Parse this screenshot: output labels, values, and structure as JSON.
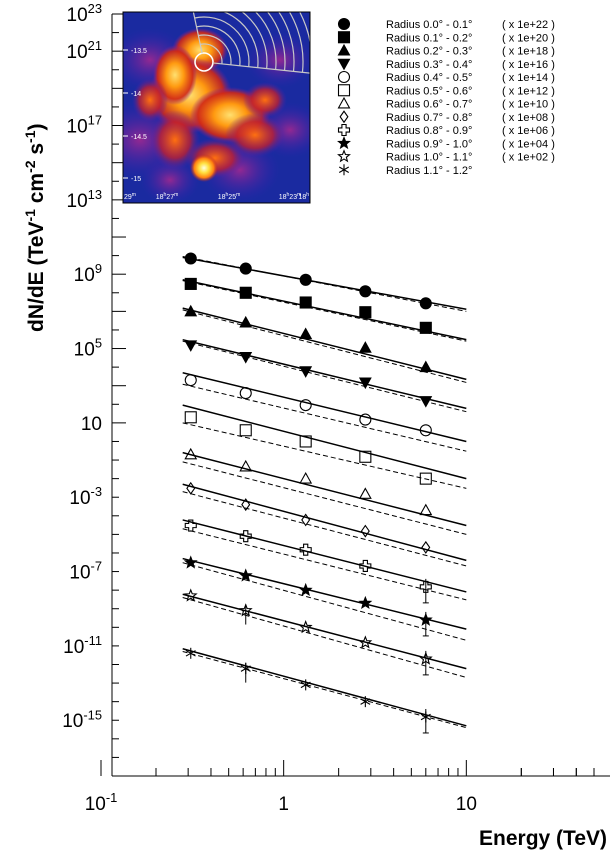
{
  "chart_data": {
    "type": "scatter",
    "xlabel": "Energy (TeV)",
    "ylabel": "dN/dE (TeV^-1 cm^-2 s^-1)",
    "xscale": "log",
    "yscale": "log",
    "xlim": [
      0.1,
      50
    ],
    "ylim": [
      1e-18,
      1e+23
    ],
    "x_ticks": [
      {
        "value": 0.1,
        "base": "10",
        "exp": "-1"
      },
      {
        "value": 1,
        "base": "1",
        "exp": ""
      },
      {
        "value": 10,
        "base": "10",
        "exp": ""
      }
    ],
    "y_ticks": [
      {
        "value": 1e+23,
        "base": "10",
        "exp": "23"
      },
      {
        "value": 1e+21,
        "base": "10",
        "exp": "21"
      },
      {
        "value": 1e+17,
        "base": "10",
        "exp": "17"
      },
      {
        "value": 10000000000000.0,
        "base": "10",
        "exp": "13"
      },
      {
        "value": 1000000000.0,
        "base": "10",
        "exp": "9"
      },
      {
        "value": 100000.0,
        "base": "10",
        "exp": "5"
      },
      {
        "value": 10,
        "base": "10",
        "exp": ""
      },
      {
        "value": 0.001,
        "base": "10",
        "exp": "-3"
      },
      {
        "value": 1e-07,
        "base": "10",
        "exp": "-7"
      },
      {
        "value": 1e-11,
        "base": "10",
        "exp": "-11"
      },
      {
        "value": 1e-15,
        "base": "10",
        "exp": "-15"
      }
    ],
    "grid": false,
    "legend_position": "top-right",
    "series": [
      {
        "name": "Radius 0.0° - 0.1°",
        "scale": "( x 1e+22 )",
        "marker": "filled-circle",
        "x": [
          0.31,
          0.62,
          1.32,
          2.8,
          6.0
        ],
        "y": [
          7000000000.0,
          2000000000.0,
          500000000.0,
          120000000.0,
          27000000.0
        ],
        "fit": [
          0.28,
          10,
          8000000000.0,
          13000000.0
        ],
        "ref": [
          0.28,
          10,
          9000000000.0,
          10000000.0
        ]
      },
      {
        "name": "Radius 0.1° - 0.2°",
        "scale": "( x 1e+20 )",
        "marker": "filled-square",
        "x": [
          0.31,
          0.62,
          1.32,
          2.8,
          6.0
        ],
        "y": [
          300000000.0,
          100000000.0,
          30000000.0,
          9000000.0,
          1300000.0
        ],
        "fit": [
          0.28,
          10,
          500000000.0,
          300000.0
        ],
        "ref": [
          0.28,
          10,
          450000000.0,
          250000.0
        ]
      },
      {
        "name": "Radius 0.2° - 0.3°",
        "scale": "( x 1e+18 )",
        "marker": "filled-triangle-up",
        "x": [
          0.31,
          0.62,
          1.32,
          2.8,
          6.0
        ],
        "y": [
          10000000.0,
          2500000.0,
          600000.0,
          110000.0,
          10000.0
        ],
        "fit": [
          0.28,
          10,
          15000000.0,
          2200.0
        ],
        "ref": [
          0.28,
          10,
          12000000.0,
          1500.0
        ]
      },
      {
        "name": "Radius 0.3° - 0.4°",
        "scale": "( x 1e+16 )",
        "marker": "filled-triangle-down",
        "x": [
          0.31,
          0.62,
          1.32,
          2.8,
          6.0
        ],
        "y": [
          150000.0,
          35000.0,
          6000.0,
          1500.0,
          150.0
        ],
        "fit": [
          0.28,
          10,
          300000.0,
          60
        ],
        "ref": [
          0.28,
          10,
          250000.0,
          40
        ]
      },
      {
        "name": "Radius 0.4° - 0.5°",
        "scale": "( x 1e+14 )",
        "marker": "open-circle",
        "x": [
          0.31,
          0.62,
          1.32,
          2.8,
          6.0
        ],
        "y": [
          2000.0,
          400,
          90,
          15,
          4
        ],
        "fit": [
          0.28,
          10,
          5000.0,
          1
        ],
        "ref": [
          0.28,
          10,
          1200.0,
          0.3
        ]
      },
      {
        "name": "Radius 0.5° - 0.6°",
        "scale": "( x 1e+12 )",
        "marker": "open-square",
        "x": [
          0.31,
          0.62,
          1.32,
          2.8,
          6.0
        ],
        "y": [
          20,
          4,
          1,
          0.15,
          0.01
        ],
        "fit": [
          0.28,
          10,
          90,
          0.01
        ],
        "ref": [
          0.28,
          10,
          10,
          0.003
        ]
      },
      {
        "name": "Radius 0.6° - 0.7°",
        "scale": "( x 1e+10 )",
        "marker": "open-triangle-up",
        "x": [
          0.31,
          0.62,
          1.32,
          2.8,
          6.0
        ],
        "y": [
          0.2,
          0.045,
          0.01,
          0.0015,
          0.0002
        ],
        "fit": [
          0.28,
          10,
          0.25,
          3e-05
        ],
        "ref": [
          0.28,
          10,
          0.08,
          1e-05
        ]
      },
      {
        "name": "Radius 0.7° - 0.8°",
        "scale": "( x 1e+08 )",
        "marker": "open-diamond",
        "x": [
          0.31,
          0.62,
          1.32,
          2.8,
          6.0
        ],
        "y": [
          0.003,
          0.0004,
          6e-05,
          1.5e-05,
          2e-06
        ],
        "fit": [
          0.28,
          10,
          0.005,
          4e-07
        ],
        "ref": [
          0.28,
          10,
          0.002,
          2e-07
        ]
      },
      {
        "name": "Radius 0.8° - 0.9°",
        "scale": "( x 1e+06 )",
        "marker": "open-cross",
        "x": [
          0.31,
          0.62,
          1.32,
          2.8,
          6.0
        ],
        "y": [
          3e-05,
          8e-06,
          1.5e-06,
          2e-07,
          1.5e-08
        ],
        "fit": [
          0.28,
          10,
          6e-05,
          8e-09
        ],
        "ref": [
          0.28,
          10,
          2e-05,
          3e-09
        ]
      },
      {
        "name": "Radius 0.9° - 1.0°",
        "scale": "( x 1e+04 )",
        "marker": "filled-star",
        "x": [
          0.31,
          0.62,
          1.32,
          2.8,
          6.0
        ],
        "y": [
          3e-07,
          6e-08,
          1e-08,
          2e-09,
          2.5e-10
        ],
        "fit": [
          0.28,
          10,
          5e-07,
          8e-11
        ],
        "ref": [
          0.28,
          10,
          3e-07,
          2e-11
        ]
      },
      {
        "name": "Radius 1.0° - 1.1°",
        "scale": "( x 1e+02 )",
        "marker": "open-star",
        "x": [
          0.31,
          0.62,
          1.32,
          2.8,
          6.0
        ],
        "y": [
          5e-09,
          8e-10,
          1e-10,
          1.5e-11,
          2e-12
        ],
        "fit": [
          0.28,
          10,
          6e-09,
          6e-13
        ],
        "ref": [
          0.28,
          10,
          4e-09,
          2e-13
        ]
      },
      {
        "name": "Radius 1.1° - 1.2°",
        "scale": "",
        "marker": "asterisk",
        "x": [
          0.31,
          0.62,
          1.32,
          2.8,
          6.0
        ],
        "y": [
          4e-12,
          6e-13,
          8e-14,
          1e-14,
          1.5e-15
        ],
        "fit": [
          0.28,
          10,
          7e-12,
          5e-16
        ],
        "ref": [
          0.28,
          10,
          5e-12,
          4e-16
        ]
      }
    ],
    "inset": {
      "type": "heatmap",
      "y_ticks": [
        "-13.5",
        "-14",
        "-14.5",
        "-15"
      ],
      "x_ticks": [
        {
          "h": "18",
          "hs": "h",
          "m": "27",
          "ms": "m"
        },
        {
          "h": "18",
          "hs": "h",
          "m": "25",
          "ms": "m"
        },
        {
          "h": "18",
          "hs": "h",
          "m": "23",
          "ms": "m"
        }
      ],
      "x_edge_left": "29",
      "x_edge_left_sup": "m",
      "x_edge_right": "18",
      "x_edge_right_sup": "h",
      "colors": {
        "background": "#1a2aa0",
        "hot": "#ff9a10",
        "warm": "#e03020",
        "core": "#ffe060",
        "arcs": "#c8c8c8"
      }
    }
  }
}
